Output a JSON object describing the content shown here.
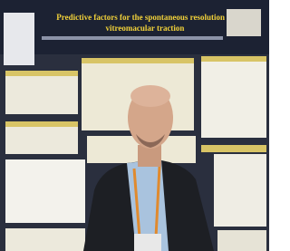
{
  "poster": {
    "title_line1": "Predictive factors for the spontaneous resolution of",
    "title_line2": "vitreomacular traction"
  }
}
